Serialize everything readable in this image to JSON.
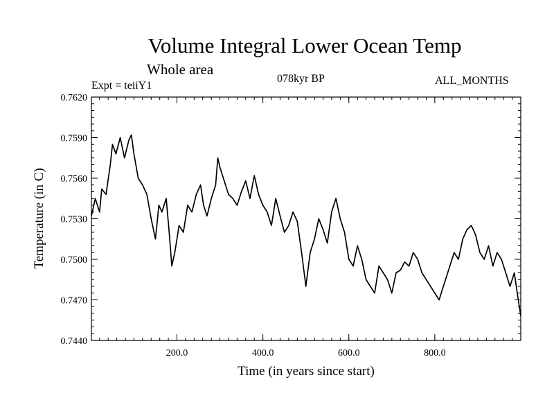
{
  "header": {
    "title": "Volume Integral Lower Ocean Temp",
    "subtitle": "Whole area",
    "experiment": "Expt = teiiY1",
    "period": "078kyr BP",
    "months": "ALL_MONTHS"
  },
  "chart_data": {
    "type": "line",
    "xlabel": "Time (in years since start)",
    "ylabel": "Temperature (in C)",
    "xlim": [
      1,
      1000
    ],
    "ylim": [
      0.744,
      0.762
    ],
    "x_ticks": [
      200,
      400,
      600,
      800
    ],
    "x_tick_labels": [
      "200.0",
      "400.0",
      "600.0",
      "800.0"
    ],
    "y_ticks": [
      0.744,
      0.747,
      0.75,
      0.753,
      0.756,
      0.759,
      0.762
    ],
    "y_tick_labels": [
      "0.7440",
      "0.7470",
      "0.7500",
      "0.7530",
      "0.7560",
      "0.7590",
      "0.7620"
    ],
    "grid": false,
    "series": [
      {
        "color": "#000000",
        "x": [
          1,
          10,
          20,
          25,
          35,
          45,
          50,
          58,
          68,
          78,
          88,
          94,
          100,
          110,
          120,
          130,
          140,
          150,
          158,
          165,
          175,
          182,
          188,
          195,
          205,
          215,
          225,
          235,
          245,
          255,
          262,
          270,
          280,
          290,
          295,
          300,
          310,
          320,
          330,
          340,
          350,
          360,
          370,
          380,
          390,
          400,
          410,
          420,
          430,
          440,
          450,
          460,
          470,
          480,
          490,
          500,
          510,
          520,
          530,
          540,
          550,
          560,
          570,
          580,
          590,
          600,
          610,
          620,
          630,
          640,
          650,
          660,
          670,
          680,
          690,
          700,
          710,
          720,
          730,
          740,
          750,
          760,
          770,
          780,
          790,
          800,
          810,
          818,
          825,
          835,
          845,
          855,
          865,
          875,
          885,
          895,
          905,
          915,
          925,
          935,
          945,
          955,
          965,
          975,
          985,
          992,
          1000
        ],
        "values": [
          0.7532,
          0.7545,
          0.7535,
          0.7552,
          0.7548,
          0.757,
          0.7585,
          0.7578,
          0.759,
          0.7575,
          0.7588,
          0.7592,
          0.7578,
          0.756,
          0.7555,
          0.7548,
          0.753,
          0.7515,
          0.754,
          0.7535,
          0.7545,
          0.752,
          0.7495,
          0.7505,
          0.7525,
          0.752,
          0.754,
          0.7535,
          0.7548,
          0.7555,
          0.754,
          0.7532,
          0.7545,
          0.7555,
          0.7575,
          0.7568,
          0.7558,
          0.7548,
          0.7545,
          0.754,
          0.755,
          0.7558,
          0.7545,
          0.7562,
          0.7548,
          0.754,
          0.7535,
          0.7525,
          0.7545,
          0.7532,
          0.752,
          0.7525,
          0.7535,
          0.7528,
          0.7505,
          0.748,
          0.7505,
          0.7515,
          0.753,
          0.7522,
          0.7512,
          0.7535,
          0.7545,
          0.753,
          0.752,
          0.75,
          0.7495,
          0.751,
          0.75,
          0.7485,
          0.748,
          0.7475,
          0.7495,
          0.749,
          0.7485,
          0.7475,
          0.749,
          0.7492,
          0.7498,
          0.7495,
          0.7505,
          0.75,
          0.749,
          0.7485,
          0.748,
          0.7475,
          0.747,
          0.7478,
          0.7485,
          0.7495,
          0.7505,
          0.75,
          0.7515,
          0.7522,
          0.7525,
          0.7518,
          0.7505,
          0.75,
          0.751,
          0.7495,
          0.7505,
          0.75,
          0.749,
          0.748,
          0.749,
          0.7475,
          0.7458
        ]
      }
    ]
  }
}
